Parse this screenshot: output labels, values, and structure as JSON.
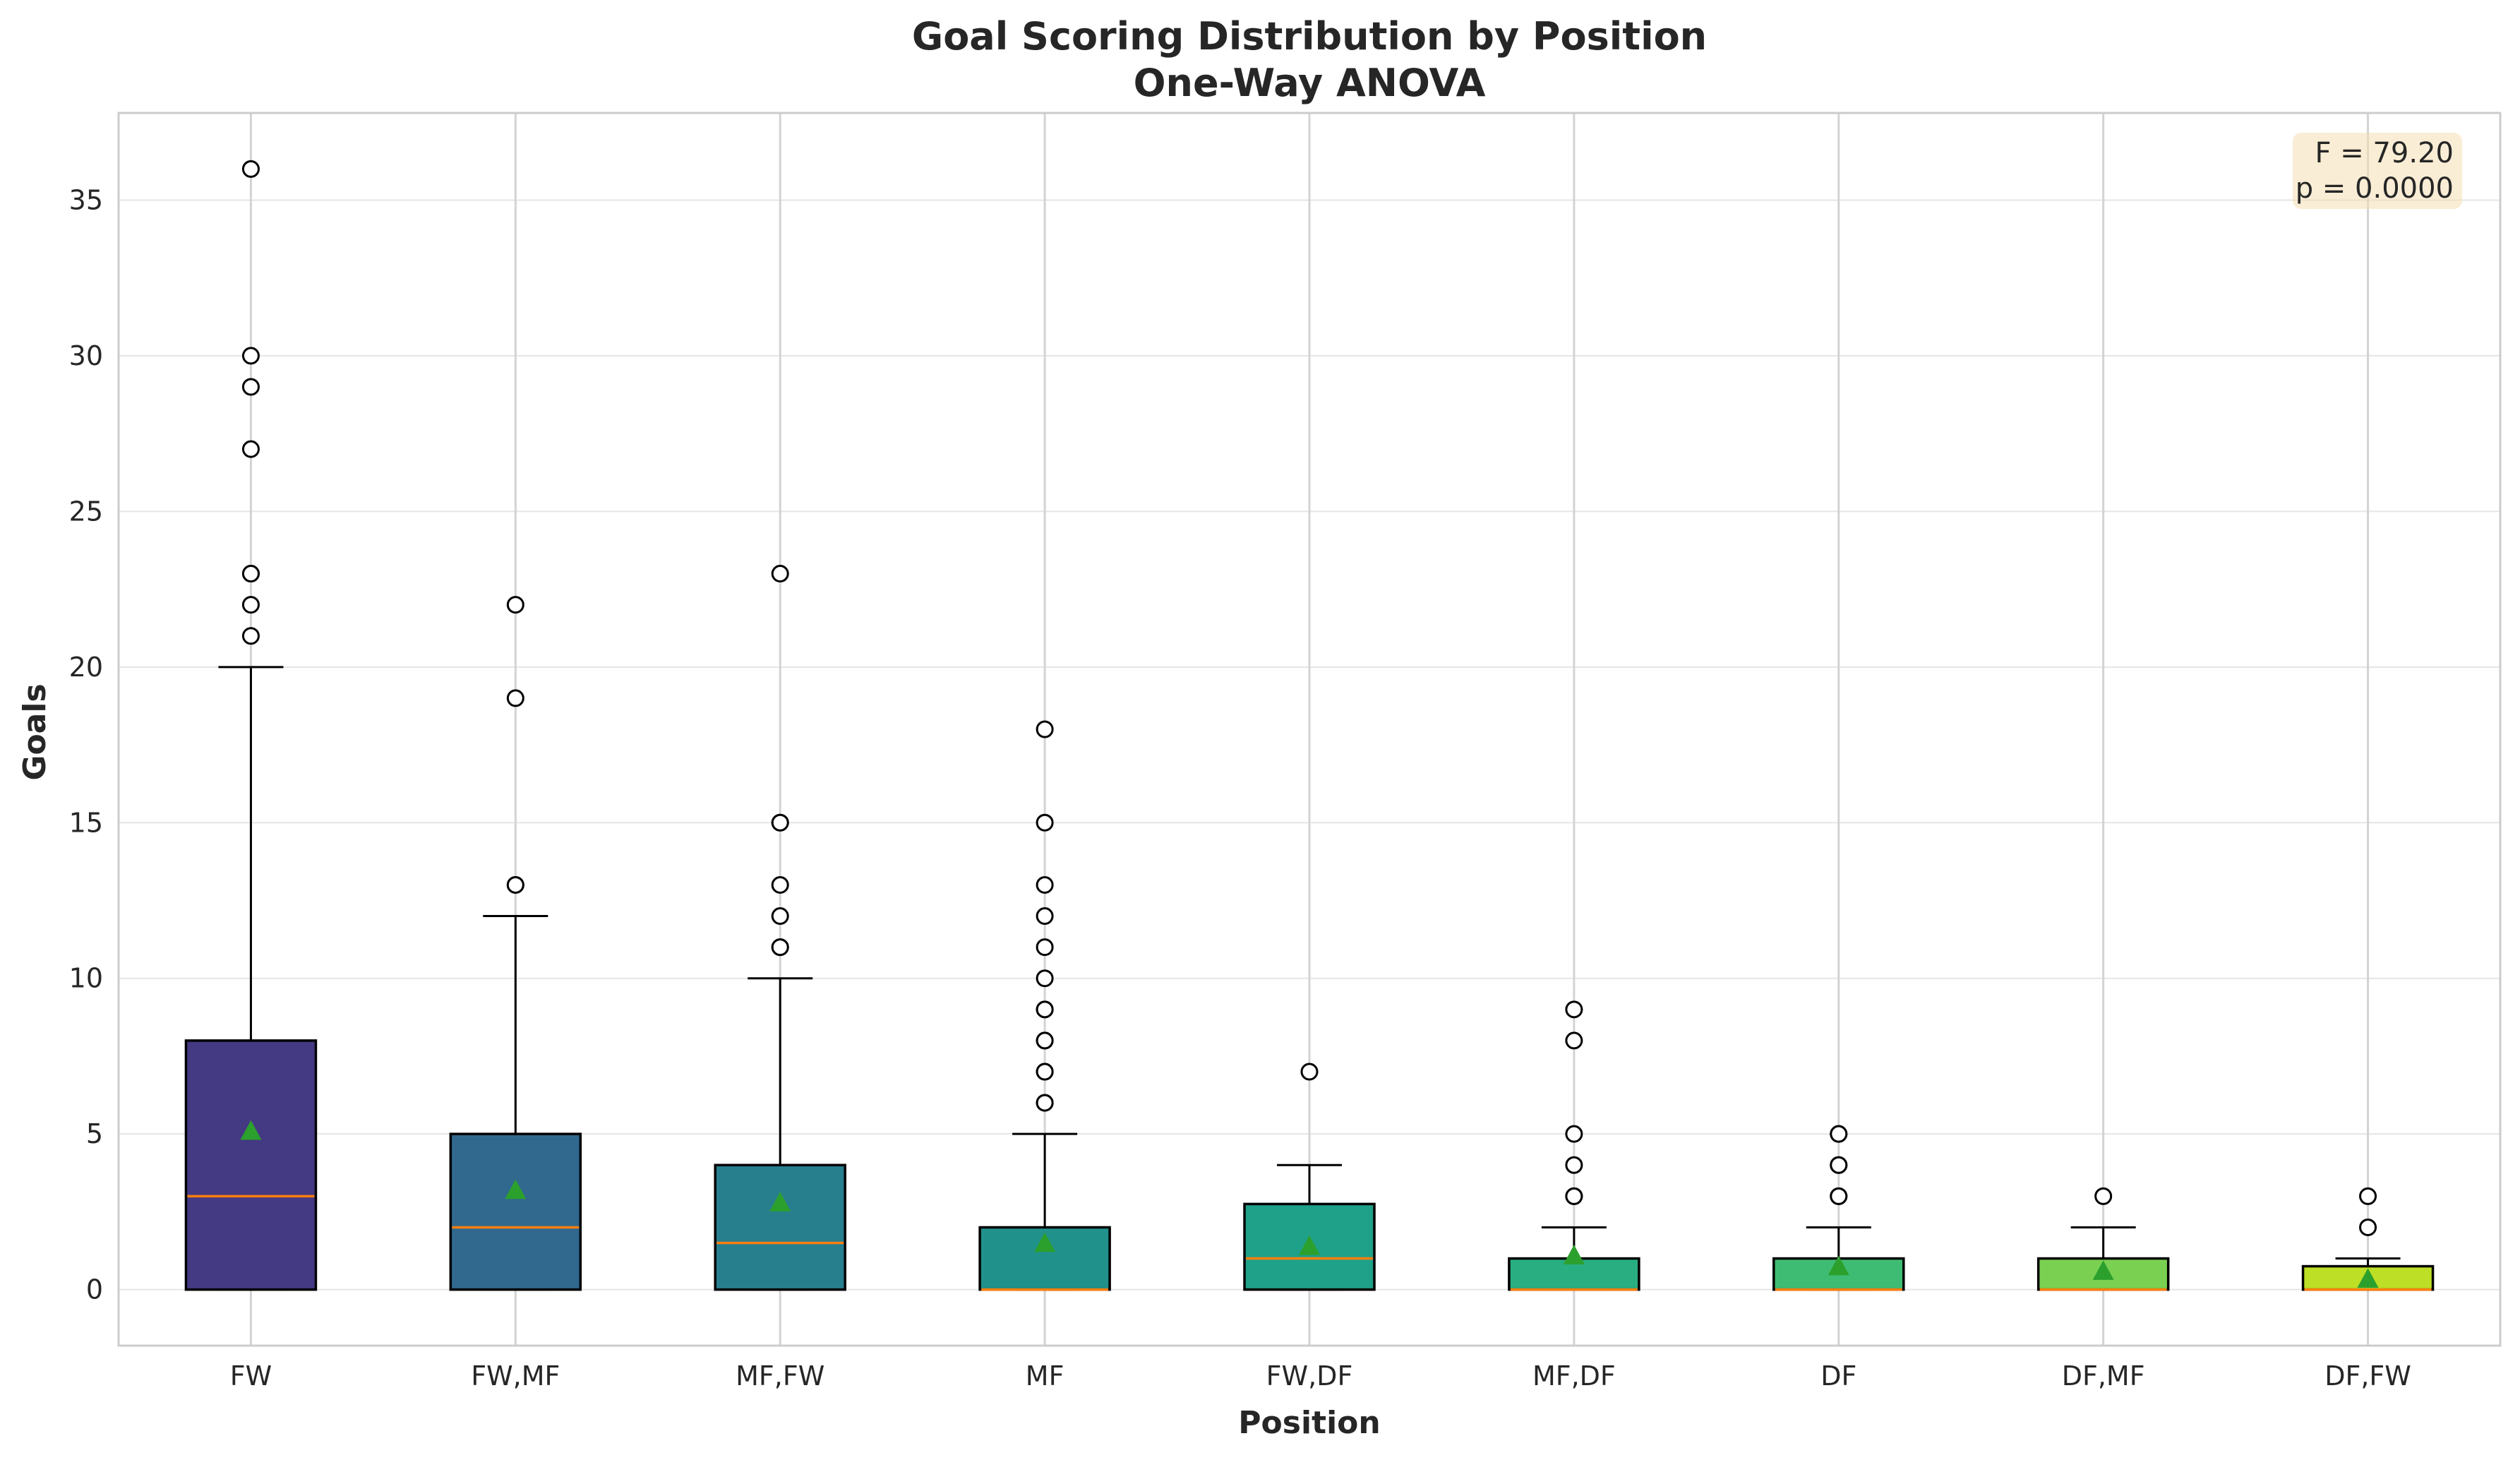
{
  "chart_data": {
    "type": "box",
    "title": "Goal Scoring Distribution by Position",
    "subtitle": "One-Way ANOVA",
    "xlabel": "Position",
    "ylabel": "Goals",
    "ylim": [
      -1.8,
      37.8
    ],
    "yticks": [
      0,
      5,
      10,
      15,
      20,
      25,
      30,
      35
    ],
    "grid": true,
    "annotation": {
      "lines": [
        "F = 79.20",
        "p = 0.0000"
      ],
      "position": "top-right"
    },
    "categories": [
      "FW",
      "FW,MF",
      "MF,FW",
      "MF",
      "FW,DF",
      "MF,DF",
      "DF",
      "DF,MF",
      "DF,FW"
    ],
    "series": [
      {
        "category": "FW",
        "q1": 0,
        "median": 3,
        "q3": 8,
        "whisker_low": 0,
        "whisker_high": 20,
        "mean": 5.1,
        "outliers": [
          21,
          22,
          23,
          23,
          27,
          29,
          30,
          36
        ],
        "color": "#443983"
      },
      {
        "category": "FW,MF",
        "q1": 0,
        "median": 2,
        "q3": 5,
        "whisker_low": 0,
        "whisker_high": 12,
        "mean": 3.2,
        "outliers": [
          13,
          13,
          19,
          22
        ],
        "color": "#31688e"
      },
      {
        "category": "MF,FW",
        "q1": 0,
        "median": 1.5,
        "q3": 4,
        "whisker_low": 0,
        "whisker_high": 10,
        "mean": 2.8,
        "outliers": [
          11,
          11,
          12,
          13,
          15,
          15,
          23
        ],
        "color": "#277f8e"
      },
      {
        "category": "MF",
        "q1": 0,
        "median": 0,
        "q3": 2,
        "whisker_low": 0,
        "whisker_high": 5,
        "mean": 1.5,
        "outliers": [
          6,
          6,
          7,
          7,
          8,
          8,
          9,
          9,
          10,
          11,
          12,
          13,
          15,
          18
        ],
        "color": "#21918c"
      },
      {
        "category": "FW,DF",
        "q1": 0,
        "median": 1,
        "q3": 2.75,
        "whisker_low": 0,
        "whisker_high": 4,
        "mean": 1.4,
        "outliers": [
          7
        ],
        "color": "#1fa088"
      },
      {
        "category": "MF,DF",
        "q1": 0,
        "median": 0,
        "q3": 1,
        "whisker_low": 0,
        "whisker_high": 2,
        "mean": 1.1,
        "outliers": [
          3,
          3,
          4,
          5,
          8,
          9
        ],
        "color": "#28ae80"
      },
      {
        "category": "DF",
        "q1": 0,
        "median": 0,
        "q3": 1,
        "whisker_low": 0,
        "whisker_high": 2,
        "mean": 0.75,
        "outliers": [
          3,
          3,
          4,
          4,
          5,
          5
        ],
        "color": "#3fbc73"
      },
      {
        "category": "DF,MF",
        "q1": 0,
        "median": 0,
        "q3": 1,
        "whisker_low": 0,
        "whisker_high": 2,
        "mean": 0.6,
        "outliers": [
          3
        ],
        "color": "#7ad151"
      },
      {
        "category": "DF,FW",
        "q1": 0,
        "median": 0,
        "q3": 0.75,
        "whisker_low": 0,
        "whisker_high": 1,
        "mean": 0.35,
        "outliers": [
          2,
          3
        ],
        "color": "#bddf26"
      }
    ],
    "colors": {
      "median_line": "#ff7f0e",
      "mean_marker": "#2ca02c",
      "box_edge": "#000000",
      "grid": "#e5e5e5",
      "frame": "#cccccc",
      "annotation_bg": "#f5deb3"
    }
  }
}
